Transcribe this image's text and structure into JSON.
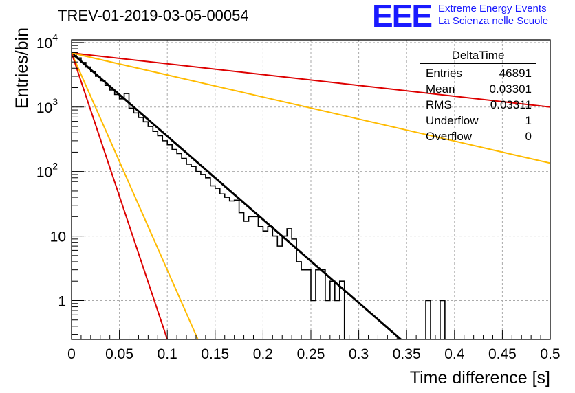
{
  "header": {
    "title": "TREV-01-2019-03-05-00054",
    "logo": "EEE",
    "logo_line1": "Extreme Energy Events",
    "logo_line2": "La Scienza nelle Scuole"
  },
  "stats_box": {
    "name": "DeltaTime",
    "rows": [
      {
        "label": "Entries",
        "value": "46891"
      },
      {
        "label": "Mean",
        "value": "0.03301"
      },
      {
        "label": "RMS",
        "value": "0.03311"
      },
      {
        "label": "Underflow",
        "value": "1"
      },
      {
        "label": "Overflow",
        "value": "0"
      }
    ]
  },
  "chart_data": {
    "type": "line",
    "title": "TREV-01-2019-03-05-00054",
    "xlabel": "Time difference [s]",
    "ylabel": "Entries/bin",
    "xlim": [
      0,
      0.5
    ],
    "ylim": [
      0.25,
      11000
    ],
    "y_scale": "log",
    "grid": true,
    "x_ticks": [
      "0",
      "0.05",
      "0.1",
      "0.15",
      "0.2",
      "0.25",
      "0.3",
      "0.35",
      "0.4",
      "0.45",
      "0.5"
    ],
    "y_ticks": [
      {
        "value": 1,
        "label": "1"
      },
      {
        "value": 10,
        "label": "10"
      },
      {
        "value": 100,
        "label": "10",
        "exp": "2"
      },
      {
        "value": 1000,
        "label": "10",
        "exp": "3"
      },
      {
        "value": 10000,
        "label": "10",
        "exp": "4"
      }
    ],
    "histogram": {
      "bin_width": 0.005,
      "color": "#000000",
      "values": [
        6800,
        5780,
        4900,
        4170,
        3540,
        3000,
        2560,
        2170,
        1840,
        1570,
        1340,
        1620,
        960,
        810,
        690,
        590,
        500,
        420,
        360,
        300,
        260,
        220,
        190,
        160,
        130,
        120,
        100,
        90,
        80,
        60,
        55,
        45,
        40,
        35,
        36,
        23,
        17,
        20,
        20,
        14,
        12,
        14,
        10,
        7,
        10,
        13,
        9,
        4,
        3,
        3,
        1,
        3,
        3,
        1,
        2,
        1,
        2,
        0.1,
        0.1,
        0.1,
        0.1,
        0.1,
        0.1,
        0.1,
        0.1,
        0.1,
        0.1,
        0.1,
        0.1,
        0.1,
        0.1,
        0.1,
        0.1,
        0.1,
        1,
        0.1,
        0.1,
        1
      ]
    },
    "lines": [
      {
        "color": "#000000",
        "width": 3,
        "points": [
          [
            0,
            6900
          ],
          [
            0.344,
            0.25
          ]
        ]
      },
      {
        "color": "#dd0000",
        "width": 2,
        "points": [
          [
            0,
            6900
          ],
          [
            0.5,
            1000
          ]
        ]
      },
      {
        "color": "#ffbb00",
        "width": 2,
        "points": [
          [
            0,
            6900
          ],
          [
            0.5,
            135
          ]
        ]
      },
      {
        "color": "#ffbb00",
        "width": 2,
        "points": [
          [
            0,
            6900
          ],
          [
            0.132,
            0.25
          ]
        ]
      },
      {
        "color": "#dd0000",
        "width": 2,
        "points": [
          [
            0,
            6900
          ],
          [
            0.1,
            0.25
          ]
        ]
      }
    ]
  }
}
